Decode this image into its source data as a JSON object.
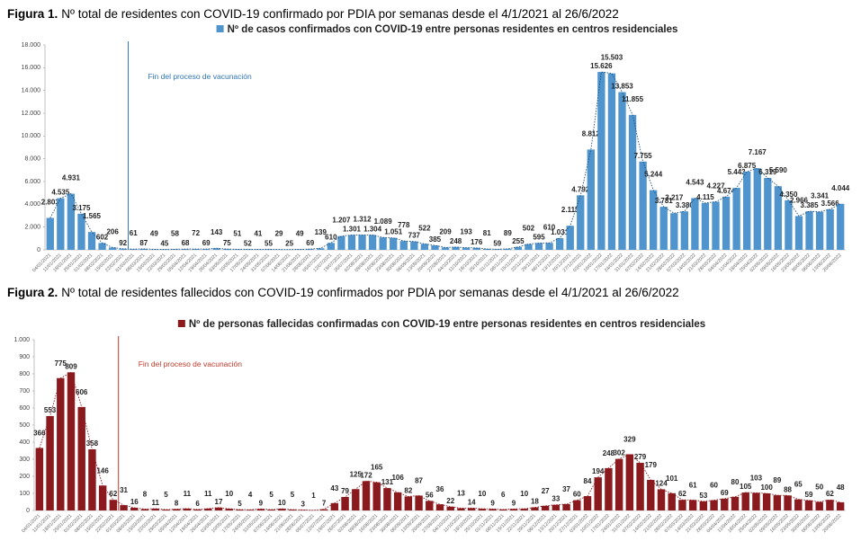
{
  "chart_data": [
    {
      "type": "bar",
      "figure": "Figura 1.",
      "title": "Nº total de residentes con COVID-19 confirmado por PDIA por semanas desde el 4/1/2021 al 26/6/2022",
      "annotation": {
        "text": "Fin del proceso de vacunación",
        "after": "22/02/2021"
      },
      "categories": [
        "04/01/2021",
        "11/01/2021",
        "18/01/2021",
        "25/01/2021",
        "01/02/2021",
        "08/02/2021",
        "15/02/2021",
        "22/02/2021",
        "01/03/2021",
        "08/03/2021",
        "15/03/2021",
        "22/03/2021",
        "29/03/2021",
        "05/04/2021",
        "12/04/2021",
        "19/04/2021",
        "26/04/2021",
        "03/05/2021",
        "10/05/2021",
        "17/05/2021",
        "24/05/2021",
        "31/05/2021",
        "07/06/2021",
        "14/06/2021",
        "21/06/2021",
        "28/06/2021",
        "05/07/2021",
        "12/07/2021",
        "19/07/2021",
        "26/07/2021",
        "02/08/2021",
        "09/08/2021",
        "16/08/2021",
        "23/08/2021",
        "30/08/2021",
        "06/09/2021",
        "13/09/2021",
        "20/09/2021",
        "27/09/2021",
        "04/10/2021",
        "11/10/2021",
        "18/10/2021",
        "25/10/2021",
        "01/11/2021",
        "08/11/2021",
        "15/11/2021",
        "22/11/2021",
        "29/11/2021",
        "06/12/2021",
        "13/12/2021",
        "20/12/2021",
        "27/12/2021",
        "03/01/2022",
        "10/01/2022",
        "17/01/2022",
        "24/01/2022",
        "31/01/2022",
        "07/02/2022",
        "14/02/2022",
        "21/02/2022",
        "28/02/2022",
        "07/03/2022",
        "14/03/2022",
        "21/03/2022",
        "28/03/2022",
        "04/04/2022",
        "11/04/2022",
        "18/04/2022",
        "25/04/2022",
        "02/05/2022",
        "09/05/2022",
        "16/05/2022",
        "23/05/2022",
        "30/05/2022",
        "06/06/2022",
        "13/06/2022",
        "20/06/2022"
      ],
      "series": [
        {
          "name": "Nº de casos confirmados con COVID-19 entre personas residentes en centros residenciales",
          "color": "#4f94cd",
          "values": [
            2803,
            4535,
            4931,
            3175,
            1565,
            602,
            206,
            92,
            61,
            87,
            49,
            45,
            58,
            68,
            72,
            69,
            143,
            75,
            51,
            52,
            41,
            55,
            29,
            25,
            49,
            69,
            139,
            610,
            1207,
            1301,
            1312,
            1304,
            1089,
            1051,
            778,
            737,
            522,
            385,
            209,
            248,
            193,
            176,
            81,
            59,
            89,
            255,
            502,
            595,
            610,
            1031,
            2115,
            4792,
            8812,
            15626,
            15503,
            13853,
            11855,
            7755,
            5244,
            3781,
            3217,
            3380,
            4543,
            4115,
            4227,
            4674,
            5443,
            6875,
            7167,
            6319,
            5590,
            4350,
            2966,
            3385,
            3341,
            3566,
            4044
          ],
          "value_labels": [
            "2.803",
            "4.535",
            "4.931",
            "3.175",
            "1.565",
            "602",
            "206",
            "92",
            "61",
            "87",
            "49",
            "45",
            "58",
            "68",
            "72",
            "69",
            "143",
            "75",
            "51",
            "52",
            "41",
            "55",
            "29",
            "25",
            "49",
            "69",
            "139",
            "610",
            "1.207",
            "1.301",
            "1.312",
            "1.304",
            "1.089",
            "1.051",
            "778",
            "737",
            "522",
            "385",
            "209",
            "248",
            "193",
            "176",
            "81",
            "59",
            "89",
            "255",
            "502",
            "595",
            "610",
            "1.031",
            "2.115",
            "4.792",
            "8.812",
            "15.626",
            "15.503",
            "13.853",
            "11.855",
            "7.755",
            "5.244",
            "3.781",
            "3.217",
            "3.380",
            "4.543",
            "4.115",
            "4.227",
            "4.674",
            "5.443",
            "6.875",
            "7.167",
            "6.319",
            "5.590",
            "4.350",
            "2.966",
            "3.385",
            "3.341",
            "3.566",
            "4.044"
          ]
        }
      ],
      "ylim": [
        0,
        18000
      ],
      "yticks": [
        0,
        {
          "value": 2000,
          "label": "2.000"
        },
        {
          "value": 4000,
          "label": "4.000"
        },
        {
          "value": 6000,
          "label": "6.000"
        },
        {
          "value": 8000,
          "label": "8.000"
        },
        {
          "value": 10000,
          "label": "10.000"
        },
        {
          "value": 12000,
          "label": "12.000"
        },
        {
          "value": 14000,
          "label": "14.000"
        },
        {
          "value": 16000,
          "label": "16.000"
        },
        {
          "value": 18000,
          "label": "18.000"
        }
      ]
    },
    {
      "type": "bar",
      "figure": "Figura 2.",
      "title": "Nº total de residentes fallecidos con COVID-19 confirmados por PDIA por semanas desde el 4/1/2021 al 26/6/2022",
      "annotation": {
        "text": "Fin del proceso de vacunación",
        "after": "22/02/2021"
      },
      "categories": [
        "04/01/2021",
        "11/01/2021",
        "18/01/2021",
        "25/01/2021",
        "01/02/2021",
        "08/02/2021",
        "15/02/2021",
        "22/02/2021",
        "01/03/2021",
        "08/03/2021",
        "15/03/2021",
        "22/03/2021",
        "29/03/2021",
        "05/04/2021",
        "12/04/2021",
        "19/04/2021",
        "26/04/2021",
        "03/05/2021",
        "10/05/2021",
        "17/05/2021",
        "24/05/2021",
        "31/05/2021",
        "07/06/2021",
        "14/06/2021",
        "21/06/2021",
        "28/06/2021",
        "05/07/2021",
        "12/07/2021",
        "19/07/2021",
        "26/07/2021",
        "02/08/2021",
        "09/08/2021",
        "16/08/2021",
        "23/08/2021",
        "30/08/2021",
        "06/09/2021",
        "13/09/2021",
        "20/09/2021",
        "27/09/2021",
        "04/10/2021",
        "11/10/2021",
        "18/10/2021",
        "25/10/2021",
        "01/11/2021",
        "08/11/2021",
        "15/11/2021",
        "22/11/2021",
        "29/11/2021",
        "06/12/2021",
        "13/12/2021",
        "20/12/2021",
        "27/12/2021",
        "03/01/2022",
        "10/01/2022",
        "17/01/2022",
        "24/01/2022",
        "31/01/2022",
        "07/02/2022",
        "14/02/2022",
        "21/02/2022",
        "28/02/2022",
        "07/03/2022",
        "14/03/2022",
        "21/03/2022",
        "28/03/2022",
        "04/04/2022",
        "11/04/2022",
        "18/04/2022",
        "25/04/2022",
        "02/05/2022",
        "09/05/2022",
        "16/05/2022",
        "23/05/2022",
        "30/05/2022",
        "06/06/2022",
        "13/06/2022",
        "20/06/2022"
      ],
      "series": [
        {
          "name": "Nº de personas fallecidas confirmadas con COVID-19 entre personas residentes en centros residenciales",
          "color": "#8b1a1f",
          "values": [
            366,
            553,
            775,
            809,
            606,
            358,
            146,
            62,
            31,
            16,
            8,
            11,
            5,
            8,
            11,
            6,
            11,
            17,
            10,
            5,
            4,
            9,
            5,
            10,
            5,
            3,
            1,
            7,
            43,
            79,
            125,
            172,
            165,
            131,
            106,
            82,
            87,
            56,
            36,
            22,
            13,
            14,
            10,
            9,
            6,
            9,
            10,
            18,
            27,
            33,
            37,
            60,
            84,
            194,
            248,
            302,
            329,
            279,
            179,
            124,
            101,
            62,
            61,
            53,
            60,
            69,
            80,
            105,
            103,
            100,
            89,
            88,
            65,
            59,
            50,
            62,
            48
          ]
        }
      ],
      "ylim": [
        0,
        1000
      ],
      "yticks": [
        0,
        100,
        200,
        300,
        400,
        500,
        600,
        700,
        800,
        900,
        {
          "value": 1000,
          "label": "1.000"
        }
      ]
    }
  ]
}
